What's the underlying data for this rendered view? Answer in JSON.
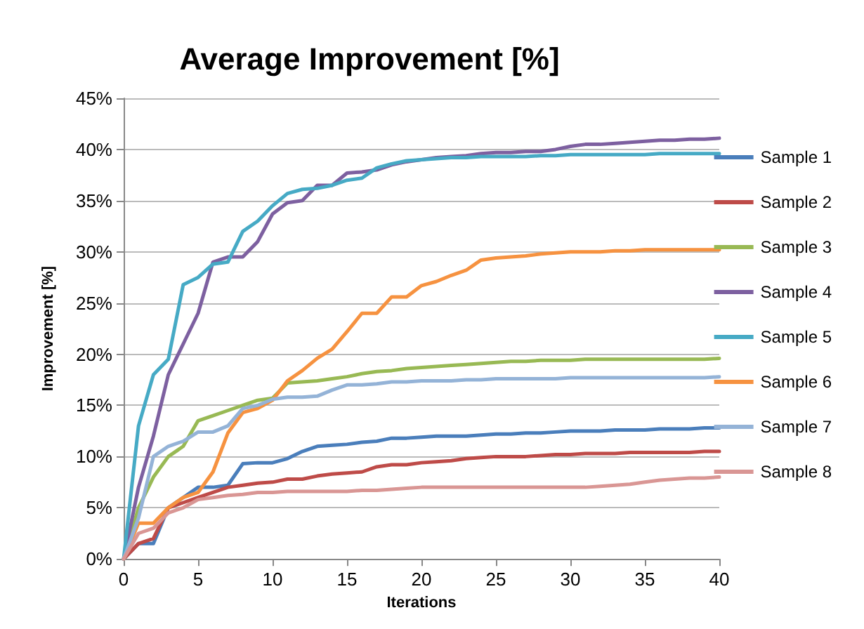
{
  "chart_data": {
    "type": "line",
    "title": "Average Improvement [%]",
    "xlabel": "Iterations",
    "ylabel": "Improvement [%]",
    "x": [
      0,
      1,
      2,
      3,
      4,
      5,
      6,
      7,
      8,
      9,
      10,
      11,
      12,
      13,
      14,
      15,
      16,
      17,
      18,
      19,
      20,
      21,
      22,
      23,
      24,
      25,
      26,
      27,
      28,
      29,
      30,
      31,
      32,
      33,
      34,
      35,
      36,
      37,
      38,
      39,
      40
    ],
    "series": [
      {
        "name": "Sample 1",
        "color": "#4a7ebb",
        "values": [
          0,
          1.5,
          1.5,
          5,
          6,
          7,
          7,
          7.2,
          9.3,
          9.4,
          9.4,
          9.8,
          10.5,
          11,
          11.1,
          11.2,
          11.4,
          11.5,
          11.8,
          11.8,
          11.9,
          12,
          12,
          12,
          12.1,
          12.2,
          12.2,
          12.3,
          12.3,
          12.4,
          12.5,
          12.5,
          12.5,
          12.6,
          12.6,
          12.6,
          12.7,
          12.7,
          12.7,
          12.8,
          12.8
        ]
      },
      {
        "name": "Sample 2",
        "color": "#be4b48",
        "values": [
          0,
          1.5,
          2,
          5,
          5.5,
          6,
          6.5,
          7,
          7.2,
          7.4,
          7.5,
          7.8,
          7.8,
          8.1,
          8.3,
          8.4,
          8.5,
          9,
          9.2,
          9.2,
          9.4,
          9.5,
          9.6,
          9.8,
          9.9,
          10,
          10,
          10,
          10.1,
          10.2,
          10.2,
          10.3,
          10.3,
          10.3,
          10.4,
          10.4,
          10.4,
          10.4,
          10.4,
          10.5,
          10.5
        ]
      },
      {
        "name": "Sample 3",
        "color": "#98b954",
        "values": [
          0,
          5,
          8,
          10,
          11,
          13.5,
          14,
          14.5,
          15,
          15.5,
          15.7,
          17.2,
          17.3,
          17.4,
          17.6,
          17.8,
          18.1,
          18.3,
          18.4,
          18.6,
          18.7,
          18.8,
          18.9,
          19,
          19.1,
          19.2,
          19.3,
          19.3,
          19.4,
          19.4,
          19.4,
          19.5,
          19.5,
          19.5,
          19.5,
          19.5,
          19.5,
          19.5,
          19.5,
          19.5,
          19.6
        ]
      },
      {
        "name": "Sample 4",
        "color": "#7d60a0",
        "values": [
          0,
          7,
          12,
          18,
          21,
          24,
          29,
          29.5,
          29.5,
          31,
          33.7,
          34.8,
          35,
          36.5,
          36.5,
          37.7,
          37.8,
          38,
          38.5,
          38.8,
          39,
          39.2,
          39.3,
          39.4,
          39.6,
          39.7,
          39.7,
          39.8,
          39.8,
          40,
          40.3,
          40.5,
          40.5,
          40.6,
          40.7,
          40.8,
          40.9,
          40.9,
          41,
          41,
          41.1
        ]
      },
      {
        "name": "Sample 5",
        "color": "#46aac5",
        "values": [
          0,
          13,
          18,
          19.5,
          26.8,
          27.5,
          28.8,
          29,
          32,
          33,
          34.5,
          35.7,
          36.1,
          36.2,
          36.5,
          37,
          37.2,
          38.2,
          38.6,
          38.9,
          39,
          39.1,
          39.2,
          39.2,
          39.3,
          39.3,
          39.3,
          39.3,
          39.4,
          39.4,
          39.5,
          39.5,
          39.5,
          39.5,
          39.5,
          39.5,
          39.6,
          39.6,
          39.6,
          39.6,
          39.6
        ]
      },
      {
        "name": "Sample 6",
        "color": "#f69240",
        "values": [
          0,
          3.5,
          3.5,
          5,
          6,
          6.5,
          8.5,
          12.3,
          14.3,
          14.7,
          15.5,
          17.4,
          18.4,
          19.6,
          20.5,
          22.2,
          24,
          24,
          25.6,
          25.6,
          26.7,
          27.1,
          27.7,
          28.2,
          29.2,
          29.4,
          29.5,
          29.6,
          29.8,
          29.9,
          30,
          30,
          30,
          30.1,
          30.1,
          30.2,
          30.2,
          30.2,
          30.2,
          30.2,
          30.2
        ]
      },
      {
        "name": "Sample 7",
        "color": "#94b3d7",
        "values": [
          0,
          4,
          10,
          11,
          11.5,
          12.4,
          12.4,
          13,
          14.7,
          15,
          15.6,
          15.8,
          15.8,
          15.9,
          16.5,
          17,
          17,
          17.1,
          17.3,
          17.3,
          17.4,
          17.4,
          17.4,
          17.5,
          17.5,
          17.6,
          17.6,
          17.6,
          17.6,
          17.6,
          17.7,
          17.7,
          17.7,
          17.7,
          17.7,
          17.7,
          17.7,
          17.7,
          17.7,
          17.7,
          17.8
        ]
      },
      {
        "name": "Sample 8",
        "color": "#d99694",
        "values": [
          0,
          2.5,
          3,
          4.5,
          5,
          5.8,
          6,
          6.2,
          6.3,
          6.5,
          6.5,
          6.6,
          6.6,
          6.6,
          6.6,
          6.6,
          6.7,
          6.7,
          6.8,
          6.9,
          7,
          7,
          7,
          7,
          7,
          7,
          7,
          7,
          7,
          7,
          7,
          7,
          7.1,
          7.2,
          7.3,
          7.5,
          7.7,
          7.8,
          7.9,
          7.9,
          8
        ]
      }
    ],
    "xlim": [
      0,
      40
    ],
    "xticks": [
      0,
      5,
      10,
      15,
      20,
      25,
      30,
      35,
      40
    ],
    "ylim": [
      0,
      45
    ],
    "yticks": [
      {
        "value": 0,
        "label": "0%"
      },
      {
        "value": 5,
        "label": "5%"
      },
      {
        "value": 10,
        "label": "10%"
      },
      {
        "value": 15,
        "label": "15%"
      },
      {
        "value": 20,
        "label": "20%"
      },
      {
        "value": 25,
        "label": "25%"
      },
      {
        "value": 30,
        "label": "30%"
      },
      {
        "value": 35,
        "label": "35%"
      },
      {
        "value": 40,
        "label": "40%"
      },
      {
        "value": 45,
        "label": "45%"
      }
    ],
    "grid": "y",
    "legend": "right",
    "marker": "none",
    "line_style": "solid"
  }
}
